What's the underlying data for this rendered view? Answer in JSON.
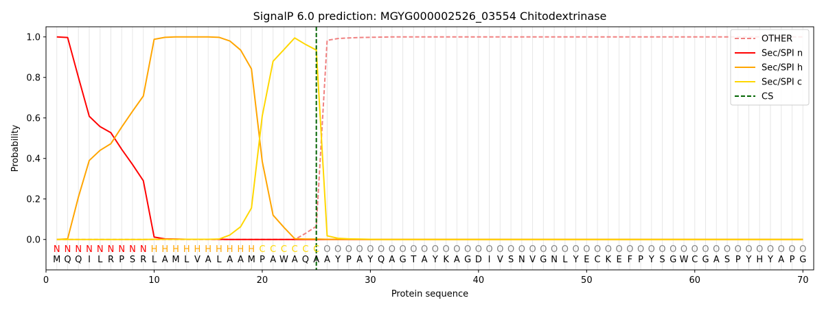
{
  "chart_data": {
    "type": "line",
    "title": "SignalP 6.0 prediction: MGYG000002526_03554 Chitodextrinase",
    "xlabel": "Protein sequence",
    "ylabel": "Probability",
    "xlim": [
      0,
      71
    ],
    "ylim": [
      -0.15,
      1.05
    ],
    "xticks": [
      0,
      10,
      20,
      30,
      40,
      50,
      60,
      70
    ],
    "yticks": [
      0.0,
      0.2,
      0.4,
      0.6,
      0.8,
      1.0
    ],
    "xtick_labels": [
      "0",
      "10",
      "20",
      "30",
      "40",
      "50",
      "60",
      "70"
    ],
    "ytick_labels": [
      "0.0",
      "0.2",
      "0.4",
      "0.6",
      "0.8",
      "1.0"
    ],
    "legend_position": "top-right",
    "grid": "vertical lines at each residue",
    "sequence": [
      "M",
      "Q",
      "Q",
      "I",
      "L",
      "R",
      "P",
      "S",
      "R",
      "L",
      "A",
      "M",
      "L",
      "V",
      "A",
      "L",
      "A",
      "A",
      "M",
      "P",
      "A",
      "W",
      "A",
      "Q",
      "A",
      "A",
      "Y",
      "P",
      "A",
      "Y",
      "Q",
      "A",
      "G",
      "T",
      "A",
      "Y",
      "K",
      "A",
      "G",
      "D",
      "I",
      "V",
      "S",
      "N",
      "V",
      "G",
      "N",
      "L",
      "Y",
      "E",
      "C",
      "K",
      "E",
      "F",
      "P",
      "Y",
      "S",
      "G",
      "W",
      "C",
      "G",
      "A",
      "S",
      "P",
      "Y",
      "H",
      "Y",
      "A",
      "P",
      "G"
    ],
    "labels": [
      "N",
      "N",
      "N",
      "N",
      "N",
      "N",
      "N",
      "N",
      "N",
      "H",
      "H",
      "H",
      "H",
      "H",
      "H",
      "H",
      "H",
      "H",
      "H",
      "C",
      "C",
      "C",
      "C",
      "C",
      "C",
      "O",
      "O",
      "O",
      "O",
      "O",
      "O",
      "O",
      "O",
      "O",
      "O",
      "O",
      "O",
      "O",
      "O",
      "O",
      "O",
      "O",
      "O",
      "O",
      "O",
      "O",
      "O",
      "O",
      "O",
      "O",
      "O",
      "O",
      "O",
      "O",
      "O",
      "O",
      "O",
      "O",
      "O",
      "O",
      "O",
      "O",
      "O",
      "O",
      "O",
      "O",
      "O",
      "O",
      "O",
      "O"
    ],
    "label_colors": {
      "N": "#ff0000",
      "H": "#ffa500",
      "C": "#ffd700",
      "O": "#808080"
    },
    "cleavage_site": 25,
    "series": [
      {
        "name": "OTHER",
        "color": "#f08080",
        "style": "dashed",
        "values": [
          0,
          0,
          0,
          0,
          0,
          0,
          0,
          0,
          0,
          0,
          0,
          0,
          0,
          0,
          0,
          0,
          0,
          0,
          0,
          0,
          0,
          0,
          0,
          0.03,
          0.065,
          0.983,
          0.992,
          0.995,
          0.997,
          0.998,
          0.999,
          1,
          1,
          1,
          1,
          1,
          1,
          1,
          1,
          1,
          1,
          1,
          1,
          1,
          1,
          1,
          1,
          1,
          1,
          1,
          1,
          1,
          1,
          1,
          1,
          1,
          1,
          1,
          1,
          1,
          1,
          1,
          1,
          1,
          1,
          1,
          1,
          1,
          1,
          1
        ]
      },
      {
        "name": "Sec/SPI n",
        "color": "#ff0000",
        "style": "solid",
        "values": [
          1.0,
          0.997,
          0.8,
          0.608,
          0.557,
          0.527,
          0.445,
          0.37,
          0.29,
          0.012,
          0.003,
          0.002,
          0.001,
          0.001,
          0.001,
          0.001,
          0,
          0,
          0,
          0,
          0,
          0,
          0,
          0,
          0,
          0,
          0,
          0,
          0,
          0,
          0,
          0,
          0,
          0,
          0,
          0,
          0,
          0,
          0,
          0,
          0,
          0,
          0,
          0,
          0,
          0,
          0,
          0,
          0,
          0,
          0,
          0,
          0,
          0,
          0,
          0,
          0,
          0,
          0,
          0,
          0,
          0,
          0,
          0,
          0,
          0,
          0,
          0,
          0,
          0
        ]
      },
      {
        "name": "Sec/SPI h",
        "color": "#ffa500",
        "style": "solid",
        "values": [
          0,
          0.003,
          0.21,
          0.39,
          0.44,
          0.473,
          0.555,
          0.633,
          0.708,
          0.988,
          0.998,
          1.0,
          1.0,
          1.0,
          1.0,
          0.998,
          0.98,
          0.935,
          0.842,
          0.385,
          0.12,
          0.06,
          0.004,
          0.002,
          0.002,
          0.001,
          0.001,
          0.001,
          0.001,
          0,
          0,
          0,
          0,
          0,
          0,
          0,
          0,
          0,
          0,
          0,
          0,
          0,
          0,
          0,
          0,
          0,
          0,
          0,
          0,
          0,
          0,
          0,
          0,
          0,
          0,
          0,
          0,
          0,
          0,
          0,
          0,
          0,
          0,
          0,
          0,
          0,
          0,
          0,
          0,
          0
        ]
      },
      {
        "name": "Sec/SPI c",
        "color": "#ffd700",
        "style": "solid",
        "values": [
          0,
          0,
          0,
          0,
          0,
          0,
          0,
          0,
          0,
          0.001,
          0.001,
          0.001,
          0.001,
          0.001,
          0.001,
          0.002,
          0.022,
          0.063,
          0.155,
          0.61,
          0.88,
          0.937,
          0.995,
          0.963,
          0.935,
          0.018,
          0.006,
          0.003,
          0.002,
          0.001,
          0,
          0,
          0,
          0,
          0,
          0,
          0,
          0,
          0,
          0,
          0,
          0,
          0,
          0,
          0,
          0,
          0,
          0,
          0,
          0,
          0,
          0,
          0,
          0,
          0,
          0,
          0,
          0,
          0,
          0,
          0,
          0,
          0,
          0,
          0,
          0,
          0,
          0,
          0,
          0
        ]
      },
      {
        "name": "CS",
        "color": "#006400",
        "style": "dashed-vertical",
        "x": 25
      }
    ]
  }
}
